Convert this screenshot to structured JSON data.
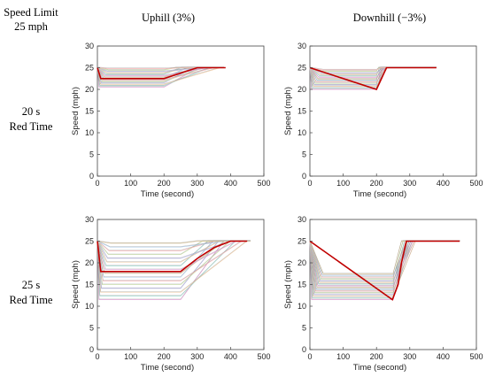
{
  "header": {
    "corner_line1": "Speed Limit",
    "corner_line2": "25 mph",
    "col1": "Uphill (3%)",
    "col2": "Downhill (−3%)"
  },
  "rows": [
    {
      "line1": "20 s",
      "line2": "Red Time"
    },
    {
      "line1": "25 s",
      "line2": "Red Time"
    }
  ],
  "colors": {
    "highlight": "#c00000",
    "palette": [
      "#e6a0d8",
      "#9ad6cc",
      "#f0c9a0",
      "#b5b5e8",
      "#c8e0a0",
      "#f5b0b0",
      "#a8c8e8",
      "#d8c090"
    ]
  },
  "chart_data": [
    {
      "type": "line",
      "panel": "20 s red time, uphill",
      "xlabel": "Time (second)",
      "ylabel": "Speed (mph)",
      "xlim": [
        0,
        500
      ],
      "ylim": [
        0,
        30
      ],
      "xticks": [
        0,
        100,
        200,
        300,
        400,
        500
      ],
      "yticks": [
        0,
        5,
        10,
        15,
        20,
        25,
        30
      ],
      "grid": false,
      "fan": {
        "count": 14,
        "v0": 25,
        "t_start_min": 5,
        "t_start_max": 35,
        "v_plateau_min": 20.5,
        "v_plateau_max": 24.8,
        "t_decel_end": 200,
        "t_recover_min": 230,
        "t_recover_max": 380,
        "v_final": 25,
        "t_end": 380
      },
      "highlight": {
        "x": [
          0,
          10,
          200,
          300,
          385
        ],
        "y": [
          25,
          22.5,
          22.5,
          25,
          25
        ]
      }
    },
    {
      "type": "line",
      "panel": "20 s red time, downhill",
      "xlabel": "Time (second)",
      "ylabel": "Speed (mph)",
      "xlim": [
        0,
        500
      ],
      "ylim": [
        0,
        30
      ],
      "xticks": [
        0,
        100,
        200,
        300,
        400,
        500
      ],
      "yticks": [
        0,
        5,
        10,
        15,
        20,
        25,
        30
      ],
      "grid": false,
      "fan": {
        "count": 14,
        "v0": 25,
        "t_start_min": 5,
        "t_start_max": 40,
        "v_plateau_min": 20,
        "v_plateau_max": 24.5,
        "t_decel_end": 200,
        "t_recover_min": 205,
        "t_recover_max": 235,
        "v_final": 25,
        "t_end": 380
      },
      "highlight": {
        "x": [
          0,
          200,
          230,
          380
        ],
        "y": [
          25,
          20,
          25,
          25
        ]
      }
    },
    {
      "type": "line",
      "panel": "25 s red time, uphill",
      "xlabel": "Time (second)",
      "ylabel": "Speed (mph)",
      "xlim": [
        0,
        500
      ],
      "ylim": [
        0,
        30
      ],
      "xticks": [
        0,
        100,
        200,
        300,
        400,
        500
      ],
      "yticks": [
        0,
        5,
        10,
        15,
        20,
        25,
        30
      ],
      "grid": false,
      "fan": {
        "count": 16,
        "v0": 25,
        "t_start_min": 5,
        "t_start_max": 40,
        "v_plateau_min": 11.5,
        "v_plateau_max": 24.5,
        "t_decel_end": 250,
        "t_recover_min": 300,
        "t_recover_max": 460,
        "v_final": 25,
        "t_end": 460
      },
      "highlight": {
        "x": [
          0,
          10,
          250,
          300,
          350,
          400,
          450
        ],
        "y": [
          25,
          18,
          18,
          21,
          23.5,
          25,
          25
        ]
      }
    },
    {
      "type": "line",
      "panel": "25 s red time, downhill",
      "xlabel": "Time (second)",
      "ylabel": "Speed (mph)",
      "xlim": [
        0,
        500
      ],
      "ylim": [
        0,
        30
      ],
      "xticks": [
        0,
        100,
        200,
        300,
        400,
        500
      ],
      "yticks": [
        0,
        5,
        10,
        15,
        20,
        25,
        30
      ],
      "grid": false,
      "fan": {
        "count": 16,
        "v0": 25,
        "t_start_min": 5,
        "t_start_max": 40,
        "v_plateau_min": 11.5,
        "v_plateau_max": 17.5,
        "t_decel_end": 250,
        "t_recover_min": 275,
        "t_recover_max": 320,
        "v_final": 25,
        "t_end": 450
      },
      "highlight": {
        "x": [
          0,
          248,
          265,
          275,
          290,
          450
        ],
        "y": [
          25,
          11.5,
          15,
          20,
          25,
          25
        ]
      }
    }
  ]
}
